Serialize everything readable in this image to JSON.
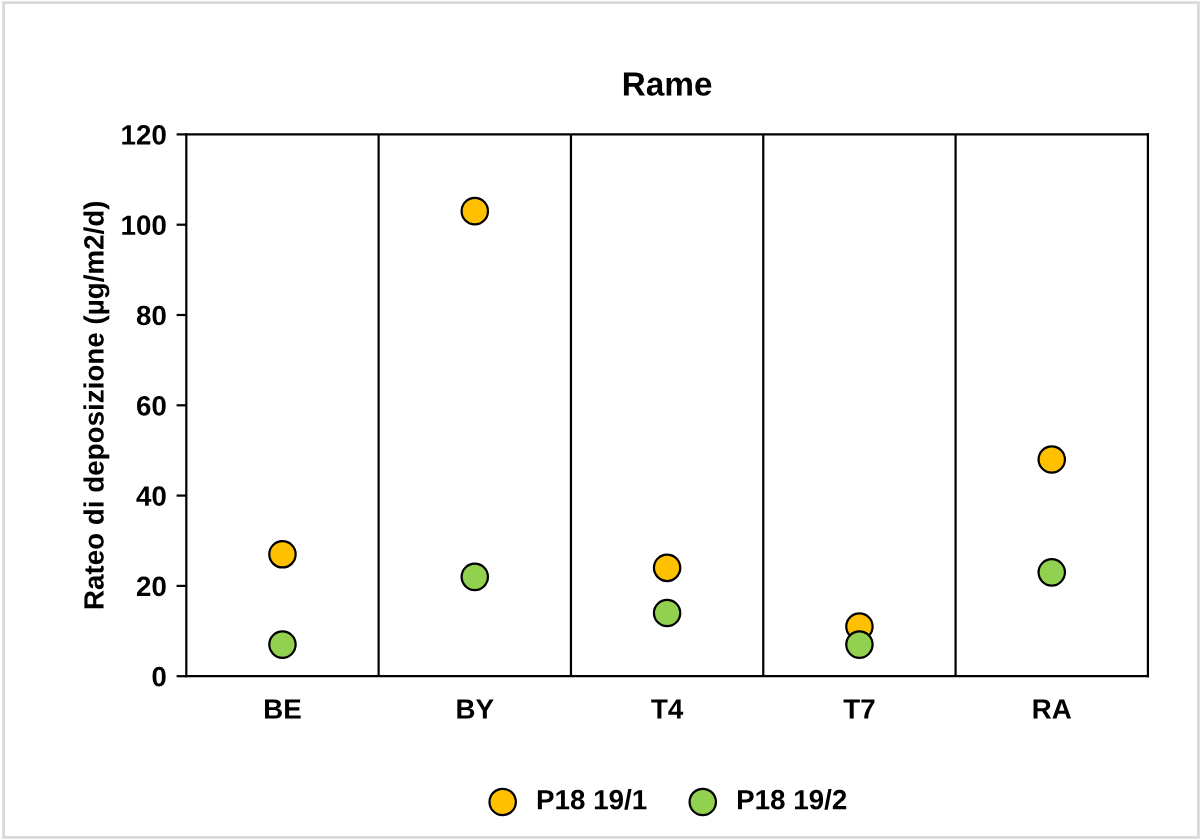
{
  "chart_data": {
    "type": "scatter",
    "title": "Rame",
    "ylabel": "Rateo di deposizione (µg/m2/d)",
    "categories": [
      "BE",
      "BY",
      "T4",
      "T7",
      "RA"
    ],
    "series": [
      {
        "name": "P18 19/1",
        "color": "#ffc000",
        "values": [
          27,
          103,
          24,
          11,
          48
        ]
      },
      {
        "name": "P18 19/2",
        "color": "#92d050",
        "values": [
          7,
          22,
          14,
          7,
          23
        ]
      }
    ],
    "ylim": [
      0,
      120
    ],
    "yticks": [
      0,
      20,
      40,
      60,
      80,
      100,
      120
    ],
    "grid": "x",
    "legend": "bottom",
    "marker": "circle"
  }
}
